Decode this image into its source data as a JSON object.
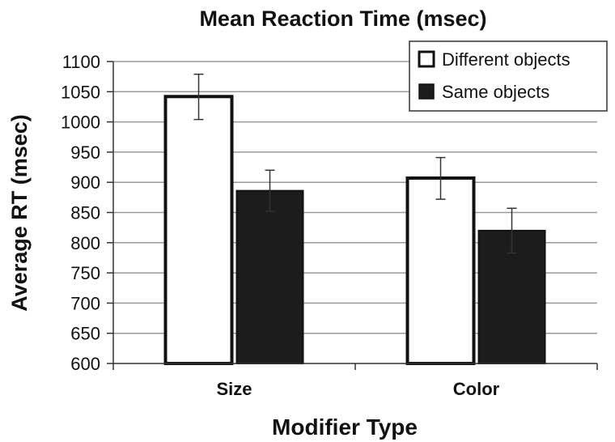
{
  "chart_data": {
    "type": "bar",
    "title": "Mean Reaction Time (msec)",
    "xlabel": "Modifier Type",
    "ylabel": "Average RT (msec)",
    "categories": [
      "Size",
      "Color"
    ],
    "ylim": [
      600,
      1100
    ],
    "yticks": [
      600,
      650,
      700,
      750,
      800,
      850,
      900,
      950,
      1000,
      1050,
      1100
    ],
    "grid": true,
    "legend_position": "top-right",
    "series": [
      {
        "name": "Different objects",
        "values": [
          1042,
          907
        ],
        "error": [
          [
            1004,
            1079
          ],
          [
            872,
            941
          ]
        ],
        "fill": "#ffffff",
        "stroke": "#111111"
      },
      {
        "name": "Same objects",
        "values": [
          886,
          820
        ],
        "error": [
          [
            852,
            920
          ],
          [
            783,
            857
          ]
        ],
        "fill": "#1c1c1c",
        "stroke": "#111111"
      }
    ]
  }
}
